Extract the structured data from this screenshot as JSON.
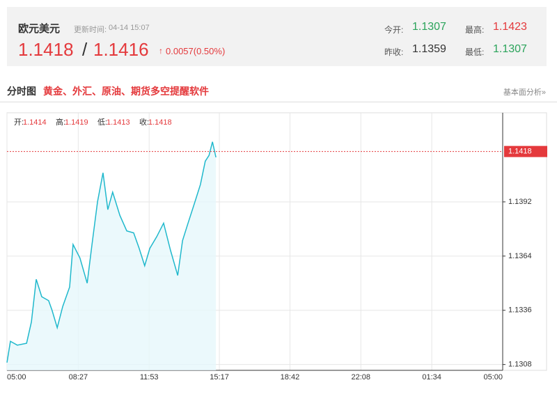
{
  "header": {
    "name": "欧元美元",
    "update_label": "更新时间:",
    "update_time": "04-14 15:07",
    "bid": "1.1418",
    "sep": "/",
    "ask": "1.1416",
    "change": "0.0057(0.50%)",
    "open_label": "今开:",
    "open": "1.1307",
    "high_label": "最高:",
    "high": "1.1423",
    "prev_label": "昨收:",
    "prev": "1.1359",
    "low_label": "最低:",
    "low": "1.1307"
  },
  "section": {
    "title": "分时图",
    "promo": "黄金、外汇、原油、期货多空提醒软件",
    "link": "基本面分析»"
  },
  "chart_data": {
    "type": "area",
    "ohlc": [
      {
        "label": "开:",
        "value": "1.1414"
      },
      {
        "label": "高:",
        "value": "1.1419"
      },
      {
        "label": "低:",
        "value": "1.1413"
      },
      {
        "label": "收:",
        "value": "1.1418"
      }
    ],
    "x": [
      0,
      10,
      30,
      57,
      71,
      85,
      101,
      121,
      131,
      146,
      162,
      182,
      192,
      212,
      233,
      247,
      263,
      279,
      293,
      307,
      328,
      348,
      368,
      384,
      400,
      415,
      435,
      455,
      475,
      496,
      510,
      526,
      546,
      562,
      576,
      587,
      597,
      607
    ],
    "values": [
      1.1309,
      1.132,
      1.1318,
      1.1319,
      1.133,
      1.1352,
      1.1343,
      1.1341,
      1.1336,
      1.1327,
      1.1338,
      1.1348,
      1.137,
      1.1363,
      1.135,
      1.137,
      1.1392,
      1.1407,
      1.1388,
      1.1397,
      1.1385,
      1.1377,
      1.1376,
      1.1368,
      1.1359,
      1.1368,
      1.1374,
      1.1381,
      1.1367,
      1.1354,
      1.1372,
      1.1381,
      1.1392,
      1.1401,
      1.1413,
      1.1416,
      1.1423,
      1.1415
    ],
    "color": "#1fb8cc",
    "last_price": 1.1418,
    "last_color": "#e4393c",
    "xlim": [
      0,
      1440
    ],
    "xticks": [
      {
        "value": 0,
        "label": "05:00"
      },
      {
        "value": 207,
        "label": "08:27"
      },
      {
        "value": 413,
        "label": "11:53"
      },
      {
        "value": 617,
        "label": "15:17"
      },
      {
        "value": 822,
        "label": "18:42"
      },
      {
        "value": 1028,
        "label": "22:08"
      },
      {
        "value": 1234,
        "label": "01:34"
      },
      {
        "value": 1440,
        "label": "05:00"
      }
    ],
    "ylim": [
      1.1305,
      1.1438
    ],
    "yticks": [
      1.1308,
      1.1336,
      1.1364,
      1.1392
    ],
    "grid": true
  }
}
